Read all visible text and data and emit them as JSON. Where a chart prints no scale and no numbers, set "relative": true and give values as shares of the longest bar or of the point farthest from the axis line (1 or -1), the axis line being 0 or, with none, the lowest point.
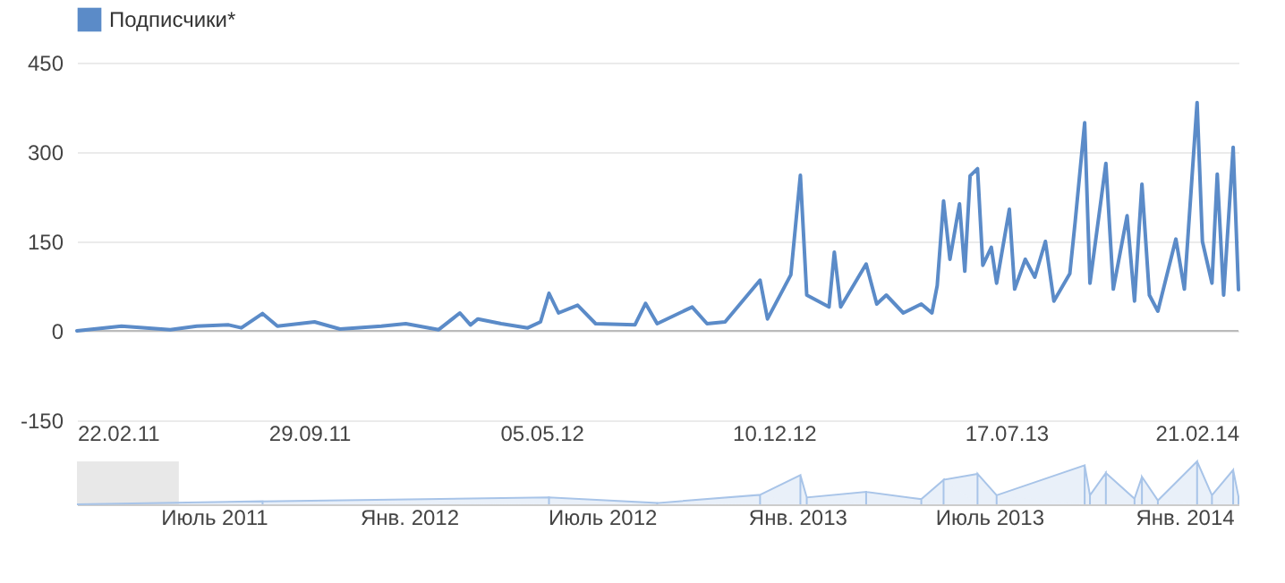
{
  "chart_data": [
    {
      "type": "line",
      "legend": "top left",
      "grid": "y",
      "x": [
        "2011-02-22",
        "2011-04-05",
        "2011-05-21",
        "2011-06-15",
        "2011-07-15",
        "2011-07-27",
        "2011-08-16",
        "2011-08-30",
        "2011-10-04",
        "2011-10-28",
        "2011-12-06",
        "2011-12-29",
        "2012-01-29",
        "2012-02-18",
        "2012-02-28",
        "2012-03-06",
        "2012-03-28",
        "2012-04-22",
        "2012-05-04",
        "2012-05-12",
        "2012-05-21",
        "2012-06-08",
        "2012-06-25",
        "2012-08-01",
        "2012-08-11",
        "2012-08-22",
        "2012-09-24",
        "2012-10-08",
        "2012-10-25",
        "2012-11-27",
        "2012-12-04",
        "2012-12-26",
        "2013-01-04",
        "2013-01-10",
        "2013-01-31",
        "2013-02-05",
        "2013-02-11",
        "2013-03-07",
        "2013-03-17",
        "2013-03-26",
        "2013-04-11",
        "2013-04-28",
        "2013-05-08",
        "2013-05-13",
        "2013-05-19",
        "2013-05-25",
        "2013-06-03",
        "2013-06-08",
        "2013-06-13",
        "2013-06-20",
        "2013-06-25",
        "2013-07-03",
        "2013-07-08",
        "2013-07-20",
        "2013-07-25",
        "2013-08-04",
        "2013-08-13",
        "2013-08-23",
        "2013-08-31",
        "2013-09-15",
        "2013-09-20",
        "2013-09-29",
        "2013-10-04",
        "2013-10-19",
        "2013-10-26",
        "2013-11-08",
        "2013-11-15",
        "2013-11-22",
        "2013-11-29",
        "2013-12-07",
        "2013-12-24",
        "2014-01-01",
        "2014-01-13",
        "2014-01-18",
        "2014-01-27",
        "2014-02-01",
        "2014-02-07",
        "2014-02-16",
        "2014-02-21"
      ],
      "series": [
        {
          "name": "Подписчики*",
          "color": "#5b8bc8",
          "values": [
            0,
            8,
            2,
            8,
            10,
            5,
            29,
            8,
            15,
            3,
            8,
            12,
            2,
            30,
            10,
            20,
            12,
            5,
            15,
            63,
            30,
            43,
            12,
            10,
            46,
            12,
            40,
            12,
            15,
            85,
            20,
            94,
            261,
            60,
            40,
            132,
            40,
            112,
            45,
            60,
            30,
            45,
            30,
            76,
            218,
            120,
            213,
            100,
            260,
            272,
            110,
            140,
            80,
            204,
            70,
            120,
            90,
            150,
            50,
            96,
            182,
            349,
            80,
            281,
            70,
            193,
            50,
            246,
            60,
            33,
            154,
            70,
            383,
            150,
            80,
            263,
            60,
            308,
            69
          ]
        }
      ],
      "xlim": [
        "2011-02-22",
        "2014-02-21"
      ],
      "xticks": [
        {
          "value": "2011-02-22",
          "label": "22.02.11"
        },
        {
          "value": "2011-09-29",
          "label": "29.09.11"
        },
        {
          "value": "2012-05-05",
          "label": "05.05.12"
        },
        {
          "value": "2012-12-10",
          "label": "10.12.12"
        },
        {
          "value": "2013-07-17",
          "label": "17.07.13"
        },
        {
          "value": "2014-02-21",
          "label": "21.02.14"
        }
      ],
      "ylim": [
        -150,
        450
      ],
      "yticks": [
        -150,
        0,
        150,
        300,
        450
      ]
    },
    {
      "type": "area",
      "relative": true,
      "x": [
        "2011-02-22",
        "2011-08-16",
        "2012-05-12",
        "2012-08-22",
        "2012-11-27",
        "2013-01-04",
        "2013-01-10",
        "2013-03-07",
        "2013-04-28",
        "2013-05-19",
        "2013-06-20",
        "2013-07-08",
        "2013-09-29",
        "2013-10-04",
        "2013-10-19",
        "2013-11-15",
        "2013-11-22",
        "2013-12-07",
        "2014-01-13",
        "2014-01-27",
        "2014-02-16",
        "2014-02-21"
      ],
      "series": [
        {
          "color": "#a8c4e8",
          "values": [
            0,
            0.07,
            0.16,
            0.03,
            0.22,
            0.68,
            0.16,
            0.29,
            0.12,
            0.57,
            0.71,
            0.21,
            0.91,
            0.21,
            0.73,
            0.13,
            0.64,
            0.09,
            1,
            0.21,
            0.8,
            0.18
          ]
        }
      ],
      "xlim": [
        "2011-02-22",
        "2014-02-21"
      ],
      "xticks": [
        {
          "value": "2011-07-01",
          "label": "Июль 2011"
        },
        {
          "value": "2012-01-01",
          "label": "Янв. 2012"
        },
        {
          "value": "2012-07-01",
          "label": "Июль 2012"
        },
        {
          "value": "2013-01-01",
          "label": "Янв. 2013"
        },
        {
          "value": "2013-07-01",
          "label": "Июль 2013"
        },
        {
          "value": "2014-01-01",
          "label": "Янв. 2014"
        }
      ],
      "bands": [
        {
          "axis": "x",
          "from": "2011-02-22",
          "to": "2011-05-29",
          "color": "#e8e8e8"
        }
      ]
    }
  ]
}
